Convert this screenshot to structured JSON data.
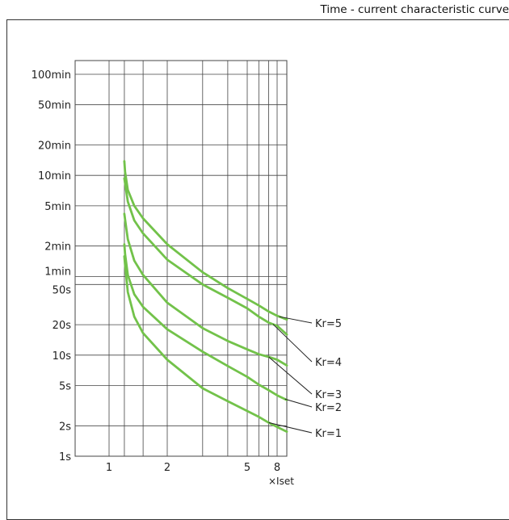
{
  "header": {
    "title": "Time - current characteristic curve"
  },
  "chart_data": {
    "type": "line",
    "title": "Time - current characteristic curve",
    "xlabel": "×Iset",
    "ylabel": "",
    "x_scale": "log",
    "y_scale": "log",
    "xlim": [
      0.8,
      9
    ],
    "ylim_seconds": [
      1,
      8400
    ],
    "grid": true,
    "x_ticks": [
      {
        "label": "1",
        "value": 1
      },
      {
        "label": "2",
        "value": 2
      },
      {
        "label": "5",
        "value": 5
      },
      {
        "label": "8",
        "value": 8
      }
    ],
    "x_gridlines": [
      1,
      1.2,
      1.5,
      2,
      3,
      4,
      5,
      6,
      7,
      8
    ],
    "y_ticks": [
      {
        "label": "1s",
        "value": 1
      },
      {
        "label": "2s",
        "value": 2
      },
      {
        "label": "5s",
        "value": 5
      },
      {
        "label": "10s",
        "value": 10
      },
      {
        "label": "20s",
        "value": 20
      },
      {
        "label": "50s",
        "value": 50
      },
      {
        "label": "1min",
        "value": 60
      },
      {
        "label": "2min",
        "value": 120
      },
      {
        "label": "5min",
        "value": 300
      },
      {
        "label": "10min",
        "value": 600
      },
      {
        "label": "20min",
        "value": 1200
      },
      {
        "label": "50min",
        "value": 3000
      },
      {
        "label": "100min",
        "value": 6000
      }
    ],
    "series": [
      {
        "name": "Kr=5",
        "x": [
          1.2,
          1.21,
          1.25,
          1.35,
          1.5,
          2,
          3,
          4,
          5,
          6,
          7,
          8,
          9
        ],
        "y": [
          830,
          650,
          430,
          300,
          225,
          125,
          66,
          46,
          36,
          31,
          27,
          24.5,
          22.5
        ]
      },
      {
        "name": "Kr=4",
        "x": [
          1.2,
          1.21,
          1.25,
          1.35,
          1.5,
          2,
          3,
          4,
          5,
          6,
          7,
          8,
          9
        ],
        "y": [
          560,
          500,
          330,
          215,
          160,
          88,
          50,
          37,
          29,
          24,
          21,
          19.5,
          16
        ]
      },
      {
        "name": "Kr=3",
        "x": [
          1.2,
          1.21,
          1.25,
          1.35,
          1.5,
          2,
          3,
          4,
          5,
          6,
          7,
          8,
          9
        ],
        "y": [
          250,
          220,
          140,
          86,
          62,
          33,
          18.5,
          13.8,
          11.4,
          10.2,
          9.6,
          9.0,
          7.9
        ]
      },
      {
        "name": "Kr=2",
        "x": [
          1.2,
          1.21,
          1.25,
          1.35,
          1.5,
          2,
          3,
          4,
          5,
          6,
          7,
          8,
          9
        ],
        "y": [
          125,
          100,
          62,
          40,
          30,
          18,
          10.8,
          7.8,
          6.1,
          5.1,
          4.5,
          4.0,
          3.6
        ]
      },
      {
        "name": "Kr=1",
        "x": [
          1.2,
          1.21,
          1.25,
          1.35,
          1.5,
          2,
          3,
          4,
          5,
          6,
          7,
          8,
          9
        ],
        "y": [
          95,
          78,
          42,
          24,
          16.5,
          9.0,
          4.7,
          3.5,
          2.8,
          2.45,
          2.15,
          1.95,
          1.75
        ]
      }
    ],
    "colors": {
      "curve": "#72c24a",
      "grid": "#444444",
      "leader": "#222222"
    }
  }
}
